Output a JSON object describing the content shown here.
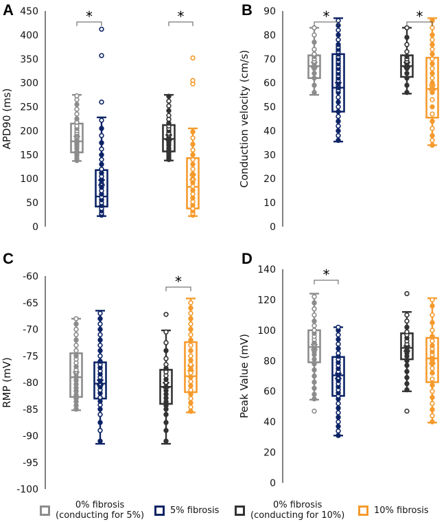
{
  "colors": {
    "g0_5": "#8c8c8c",
    "f5": "#0d2466",
    "g0_10": "#333333",
    "f10": "#f59a2c"
  },
  "legend": [
    {
      "label": "0% fibrosis\n(conducting for 5%)",
      "color": "#8c8c8c"
    },
    {
      "label": "5% fibrosis",
      "color": "#0d2466"
    },
    {
      "label": "0% fibrosis\n(conducting for 10%)",
      "color": "#333333"
    },
    {
      "label": "10% fibrosis",
      "color": "#f59a2c"
    }
  ],
  "chart_data": [
    {
      "panel": "A",
      "type": "box",
      "ylabel": "APD90 (ms)",
      "ylim": [
        0,
        450
      ],
      "yticks": [
        0,
        50,
        100,
        150,
        200,
        250,
        300,
        350,
        400,
        450
      ],
      "significance": [
        {
          "groups": [
            0,
            1
          ],
          "label": "*"
        },
        {
          "groups": [
            2,
            3
          ],
          "label": "*"
        }
      ],
      "series": [
        {
          "name": "0% fibrosis (conducting for 5%)",
          "q1": 155,
          "median": 178,
          "q3": 215,
          "mean": 183,
          "whisker_low": 137,
          "whisker_high": 275,
          "points": [
            138,
            142,
            148,
            152,
            157,
            163,
            168,
            172,
            176,
            180,
            184,
            188,
            192,
            196,
            200,
            205,
            210,
            218,
            225,
            235,
            245,
            255,
            265,
            273
          ],
          "outliers": []
        },
        {
          "name": "5% fibrosis",
          "q1": 42,
          "median": 63,
          "q3": 118,
          "mean": 92,
          "whisker_low": 22,
          "whisker_high": 228,
          "points": [
            24,
            28,
            33,
            38,
            44,
            50,
            56,
            62,
            68,
            75,
            82,
            90,
            98,
            105,
            112,
            120,
            130,
            140,
            150,
            162,
            175,
            190,
            205,
            222
          ],
          "outliers": [
            260,
            357,
            412
          ]
        },
        {
          "name": "0% fibrosis (conducting for 10%)",
          "q1": 157,
          "median": 183,
          "q3": 212,
          "mean": 186,
          "whisker_low": 138,
          "whisker_high": 275,
          "points": [
            140,
            144,
            149,
            154,
            159,
            164,
            170,
            175,
            180,
            185,
            190,
            195,
            200,
            205,
            210,
            216,
            224,
            232,
            242,
            252,
            262,
            272
          ],
          "outliers": []
        },
        {
          "name": "10% fibrosis",
          "q1": 38,
          "median": 83,
          "q3": 143,
          "mean": 103,
          "whisker_low": 22,
          "whisker_high": 205,
          "points": [
            24,
            28,
            33,
            38,
            45,
            52,
            60,
            68,
            76,
            84,
            92,
            100,
            110,
            120,
            130,
            140,
            150,
            160,
            172,
            185,
            198
          ],
          "outliers": [
            298,
            305,
            352
          ]
        }
      ]
    },
    {
      "panel": "B",
      "type": "box",
      "ylabel": "Conduction velocity (cm/s)",
      "ylim": [
        0,
        90
      ],
      "yticks": [
        0,
        10,
        20,
        30,
        40,
        50,
        60,
        70,
        80,
        90
      ],
      "significance": [
        {
          "groups": [
            0,
            1
          ],
          "label": "*"
        },
        {
          "groups": [
            2,
            3
          ],
          "label": "*"
        }
      ],
      "series": [
        {
          "name": "0% fibrosis (conducting for 5%)",
          "q1": 62,
          "median": 67,
          "q3": 71.5,
          "mean": 67.5,
          "whisker_low": 55,
          "whisker_high": 83,
          "points": [
            56,
            59,
            62,
            64,
            66,
            67,
            68,
            69,
            70,
            71,
            72,
            74,
            77,
            80,
            83
          ],
          "outliers": []
        },
        {
          "name": "5% fibrosis",
          "q1": 48,
          "median": 58,
          "q3": 72,
          "mean": 59,
          "whisker_low": 35.5,
          "whisker_high": 87,
          "points": [
            36,
            38,
            40,
            42,
            44,
            46,
            48,
            50,
            52,
            54,
            56,
            57,
            58,
            59,
            60,
            61,
            62,
            63,
            64,
            65,
            66,
            67,
            68,
            69,
            70,
            71,
            72,
            73,
            74,
            75,
            76,
            78,
            80,
            82,
            84,
            86
          ],
          "outliers": []
        },
        {
          "name": "0% fibrosis (conducting for 10%)",
          "q1": 62.5,
          "median": 67,
          "q3": 71.5,
          "mean": 67.5,
          "whisker_low": 55.5,
          "whisker_high": 83,
          "points": [
            56,
            59,
            62,
            64,
            66,
            67,
            68,
            69,
            70,
            71,
            73,
            76,
            79,
            83
          ],
          "outliers": []
        },
        {
          "name": "10% fibrosis",
          "q1": 45.5,
          "median": 57.5,
          "q3": 70.5,
          "mean": 58,
          "whisker_low": 34,
          "whisker_high": 87,
          "points": [
            34,
            36,
            38,
            41,
            44,
            47,
            50,
            53,
            56,
            58,
            60,
            62,
            64,
            66,
            68,
            70,
            72,
            74,
            76,
            78,
            80,
            83,
            86
          ],
          "outliers": []
        }
      ]
    },
    {
      "panel": "C",
      "type": "box",
      "ylabel": "RMP (mV)",
      "ylim": [
        -100,
        -60
      ],
      "yticks": [
        -100,
        -95,
        -90,
        -85,
        -80,
        -75,
        -70,
        -65,
        -60
      ],
      "significance": [
        {
          "groups": [
            2,
            3
          ],
          "label": "*"
        }
      ],
      "series": [
        {
          "name": "0% fibrosis (conducting for 5%)",
          "q1": -82.7,
          "median": -79,
          "q3": -74.5,
          "mean": -78.5,
          "whisker_low": -85.2,
          "whisker_high": -68,
          "points": [
            -85,
            -84.3,
            -83.6,
            -83,
            -82.3,
            -81.6,
            -81,
            -80.3,
            -79.6,
            -79,
            -78.3,
            -77.6,
            -77,
            -76.3,
            -75.6,
            -75,
            -74,
            -73,
            -72,
            -71,
            -70,
            -69,
            -68
          ],
          "outliers": []
        },
        {
          "name": "5% fibrosis",
          "q1": -83,
          "median": -80.2,
          "q3": -76.2,
          "mean": -80,
          "whisker_low": -91.5,
          "whisker_high": -66.5,
          "points": [
            -91,
            -89,
            -87.5,
            -86,
            -85,
            -84.2,
            -83.5,
            -82.8,
            -82,
            -81.4,
            -80.8,
            -80.2,
            -79.6,
            -79,
            -78.4,
            -77.8,
            -77.2,
            -76.6,
            -76,
            -75,
            -74,
            -73,
            -72,
            -71,
            -70,
            -69,
            -68,
            -67
          ],
          "outliers": []
        },
        {
          "name": "0% fibrosis (conducting for 10%)",
          "q1": -84,
          "median": -80.8,
          "q3": -77.6,
          "mean": -80.5,
          "whisker_low": -91.5,
          "whisker_high": -70.2,
          "points": [
            -91,
            -89,
            -87.5,
            -86,
            -85,
            -84.3,
            -83.6,
            -82.9,
            -82.2,
            -81.5,
            -80.8,
            -80.1,
            -79.4,
            -78.7,
            -78,
            -77.3,
            -76.6,
            -75.5,
            -74,
            -72.5,
            -70.5
          ],
          "outliers": [
            -67.2
          ]
        },
        {
          "name": "10% fibrosis",
          "q1": -81.8,
          "median": -78.8,
          "q3": -72.4,
          "mean": -77.3,
          "whisker_low": -85.6,
          "whisker_high": -64.2,
          "points": [
            -85.4,
            -84.6,
            -83.8,
            -83,
            -82.2,
            -81.4,
            -80.6,
            -79.8,
            -79,
            -78.2,
            -77.4,
            -76.6,
            -75.8,
            -75,
            -74,
            -73,
            -72,
            -71,
            -70,
            -69,
            -68,
            -67,
            -66,
            -65
          ],
          "outliers": []
        }
      ]
    },
    {
      "panel": "D",
      "type": "box",
      "ylabel": "Peak Value (mV)",
      "ylim": [
        0,
        140
      ],
      "yticks": [
        0,
        20,
        40,
        60,
        80,
        100,
        120,
        140
      ],
      "significance": [
        {
          "groups": [
            0,
            1
          ],
          "label": "*"
        }
      ],
      "series": [
        {
          "name": "0% fibrosis (conducting for 5%)",
          "q1": 79,
          "median": 89,
          "q3": 100,
          "mean": 89,
          "whisker_low": 54.5,
          "whisker_high": 124,
          "points": [
            55,
            58,
            62,
            66,
            70,
            74,
            78,
            81,
            84,
            86,
            88,
            90,
            92,
            94,
            96,
            98,
            100,
            103,
            106,
            110,
            114,
            118,
            122
          ],
          "outliers": [
            47
          ]
        },
        {
          "name": "5% fibrosis",
          "q1": 57,
          "median": 70.5,
          "q3": 82.5,
          "mean": 70,
          "whisker_low": 31,
          "whisker_high": 102,
          "points": [
            31,
            34,
            37,
            40,
            43,
            46,
            49,
            52,
            55,
            57,
            59,
            61,
            63,
            65,
            67,
            69,
            71,
            73,
            75,
            77,
            79,
            81,
            83,
            85,
            88,
            91,
            94,
            97,
            100,
            102
          ],
          "outliers": []
        },
        {
          "name": "0% fibrosis (conducting for 10%)",
          "q1": 81,
          "median": 88.5,
          "q3": 98,
          "mean": 88,
          "whisker_low": 60,
          "whisker_high": 112,
          "points": [
            61,
            65,
            69,
            73,
            77,
            80,
            83,
            85,
            87,
            89,
            91,
            93,
            95,
            97,
            99,
            102,
            106,
            110
          ],
          "outliers": [
            47,
            124
          ]
        },
        {
          "name": "10% fibrosis",
          "q1": 66,
          "median": 81.5,
          "q3": 95,
          "mean": 80,
          "whisker_low": 39.5,
          "whisker_high": 121,
          "points": [
            40,
            44,
            48,
            52,
            56,
            60,
            64,
            68,
            72,
            75,
            78,
            80,
            82,
            84,
            86,
            88,
            90,
            93,
            96,
            100,
            105,
            110,
            116,
            120
          ],
          "outliers": []
        }
      ]
    }
  ]
}
